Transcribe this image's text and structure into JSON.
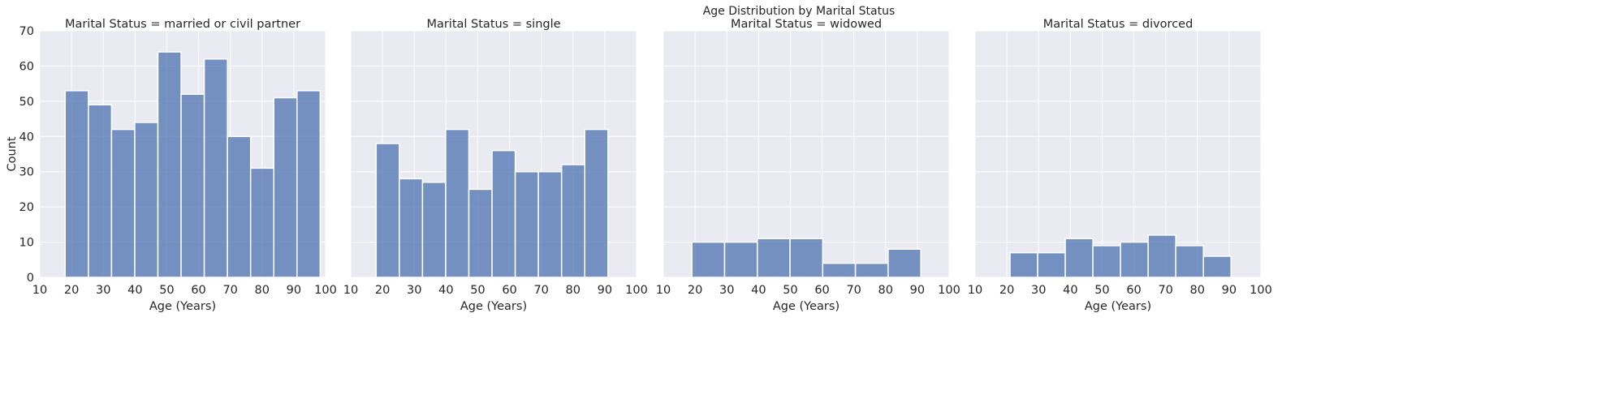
{
  "chart_data": {
    "type": "bar",
    "title": "Age Distribution by Marital Status",
    "ylabel": "Count",
    "xlim": [
      10,
      100
    ],
    "ylim": [
      0,
      70
    ],
    "xticks": [
      10,
      20,
      30,
      40,
      50,
      60,
      70,
      80,
      90,
      100
    ],
    "yticks": [
      0,
      10,
      20,
      30,
      40,
      50,
      60,
      70
    ],
    "grid": true,
    "bar_color": "#4c72b0",
    "background_color": "#eaeaf2",
    "panels": [
      {
        "title": "Marital Status = married or civil partner",
        "xlabel": "Age (Years)",
        "bins": [
          {
            "x0": 18,
            "x1": 25.3,
            "value": 53
          },
          {
            "x0": 25.3,
            "x1": 32.6,
            "value": 49
          },
          {
            "x0": 32.6,
            "x1": 39.9,
            "value": 42
          },
          {
            "x0": 39.9,
            "x1": 47.2,
            "value": 44
          },
          {
            "x0": 47.2,
            "x1": 54.5,
            "value": 64
          },
          {
            "x0": 54.5,
            "x1": 61.8,
            "value": 52
          },
          {
            "x0": 61.8,
            "x1": 69.1,
            "value": 62
          },
          {
            "x0": 69.1,
            "x1": 76.4,
            "value": 40
          },
          {
            "x0": 76.4,
            "x1": 83.7,
            "value": 31
          },
          {
            "x0": 83.7,
            "x1": 91,
            "value": 51
          },
          {
            "x0": 91,
            "x1": 98.3,
            "value": 53
          }
        ]
      },
      {
        "title": "Marital Status = single",
        "xlabel": "Age (Years)",
        "bins": [
          {
            "x0": 18,
            "x1": 25.3,
            "value": 38
          },
          {
            "x0": 25.3,
            "x1": 32.6,
            "value": 28
          },
          {
            "x0": 32.6,
            "x1": 39.9,
            "value": 27
          },
          {
            "x0": 39.9,
            "x1": 47.2,
            "value": 42
          },
          {
            "x0": 47.2,
            "x1": 54.5,
            "value": 25
          },
          {
            "x0": 54.5,
            "x1": 61.8,
            "value": 36
          },
          {
            "x0": 61.8,
            "x1": 69.1,
            "value": 30
          },
          {
            "x0": 69.1,
            "x1": 76.4,
            "value": 30
          },
          {
            "x0": 76.4,
            "x1": 83.7,
            "value": 32
          },
          {
            "x0": 83.7,
            "x1": 91,
            "value": 42
          }
        ]
      },
      {
        "title": "Marital Status = widowed",
        "xlabel": "Age (Years)",
        "bins": [
          {
            "x0": 19,
            "x1": 29.3,
            "value": 10
          },
          {
            "x0": 29.3,
            "x1": 39.6,
            "value": 10
          },
          {
            "x0": 39.6,
            "x1": 49.9,
            "value": 11
          },
          {
            "x0": 49.9,
            "x1": 60.2,
            "value": 11
          },
          {
            "x0": 60.2,
            "x1": 70.5,
            "value": 4
          },
          {
            "x0": 70.5,
            "x1": 80.8,
            "value": 4
          },
          {
            "x0": 80.8,
            "x1": 91.1,
            "value": 8
          }
        ]
      },
      {
        "title": "Marital Status = divorced",
        "xlabel": "Age (Years)",
        "bins": [
          {
            "x0": 21,
            "x1": 29.7,
            "value": 7
          },
          {
            "x0": 29.7,
            "x1": 38.4,
            "value": 7
          },
          {
            "x0": 38.4,
            "x1": 47.1,
            "value": 11
          },
          {
            "x0": 47.1,
            "x1": 55.8,
            "value": 9
          },
          {
            "x0": 55.8,
            "x1": 64.5,
            "value": 10
          },
          {
            "x0": 64.5,
            "x1": 73.2,
            "value": 12
          },
          {
            "x0": 73.2,
            "x1": 81.9,
            "value": 9
          },
          {
            "x0": 81.9,
            "x1": 90.6,
            "value": 6
          }
        ]
      }
    ]
  }
}
